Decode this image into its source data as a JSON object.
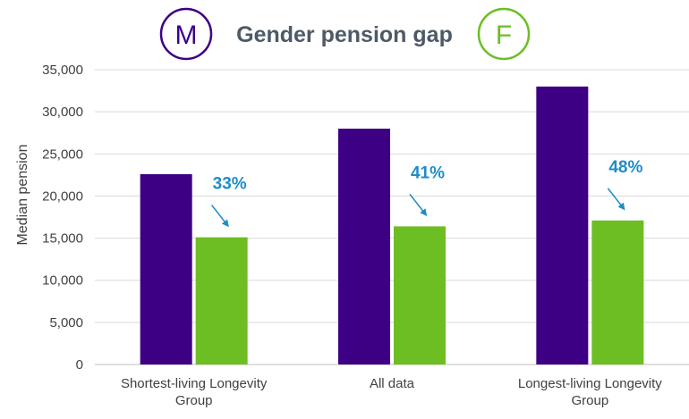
{
  "chart_data": {
    "type": "bar",
    "title": "Gender pension gap",
    "ylabel": "Median pension",
    "xlabel": "",
    "ylim": [
      0,
      35000
    ],
    "yticks": [
      0,
      5000,
      10000,
      15000,
      20000,
      25000,
      30000,
      35000
    ],
    "ytick_labels": [
      "0",
      "5,000",
      "10,000",
      "15,000",
      "20,000",
      "25,000",
      "30,000",
      "35,000"
    ],
    "categories": [
      [
        "Shortest-living Longevity",
        "Group"
      ],
      [
        "All data"
      ],
      [
        "Longest-living Longevity",
        "Group"
      ]
    ],
    "series": [
      {
        "name": "M",
        "color": "#3d0085",
        "values": [
          22600,
          28000,
          33000
        ]
      },
      {
        "name": "F",
        "color": "#6cbe23",
        "values": [
          15100,
          16400,
          17100
        ]
      }
    ],
    "gap_labels": [
      "33%",
      "41%",
      "48%"
    ],
    "gap_color": "#1f8dc6",
    "grid": true,
    "legend": "top"
  }
}
